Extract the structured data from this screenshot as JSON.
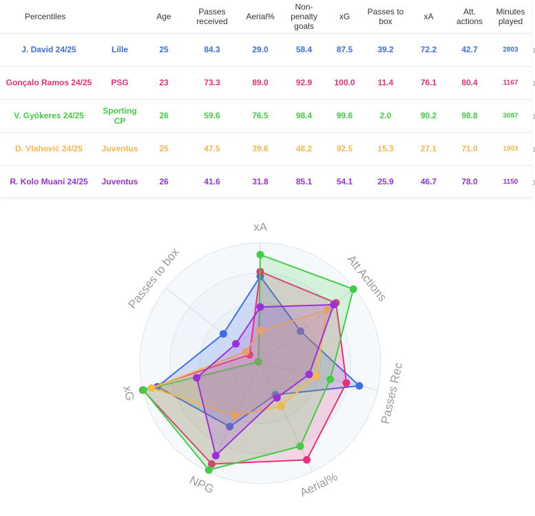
{
  "table": {
    "headers": [
      "Percentiles",
      "Age",
      "Passes received",
      "Aerial%",
      "Non-penalty goals",
      "xG",
      "Passes to box",
      "xA",
      "Att. actions",
      "Minutes played"
    ],
    "remove_label": "x",
    "rows": [
      {
        "player": "J. David 24/25",
        "team": "Lille",
        "age": "25",
        "passes_received": "84.3",
        "aerial": "29.0",
        "npg": "58.4",
        "xg": "87.5",
        "passes_box": "39.2",
        "xa": "72.2",
        "att_actions": "42.7",
        "minutes": "2803",
        "color": "#3b6ee8"
      },
      {
        "player": "Gonçalo Ramos 24/25",
        "team": "PSG",
        "age": "23",
        "passes_received": "73.3",
        "aerial": "89.0",
        "npg": "92.9",
        "xg": "100.0",
        "passes_box": "11.4",
        "xa": "76.1",
        "att_actions": "80.4",
        "minutes": "1167",
        "color": "#e8307a"
      },
      {
        "player": "V. Gyökeres 24/25",
        "team": "Sporting CP",
        "age": "26",
        "passes_received": "59.6",
        "aerial": "76.5",
        "npg": "98.4",
        "xg": "99.6",
        "passes_box": "2.0",
        "xa": "90.2",
        "att_actions": "98.8",
        "minutes": "3087",
        "color": "#44cc44"
      },
      {
        "player": "D. Vlahović 24/25",
        "team": "Juventus",
        "age": "25",
        "passes_received": "47.5",
        "aerial": "39.6",
        "npg": "48.2",
        "xg": "92.5",
        "passes_box": "15.3",
        "xa": "27.1",
        "att_actions": "71.0",
        "minutes": "1903",
        "color": "#f7b84b"
      },
      {
        "player": "R. Kolo Muani 24/25",
        "team": "Juventus",
        "age": "26",
        "passes_received": "41.6",
        "aerial": "31.8",
        "npg": "85.1",
        "xg": "54.1",
        "passes_box": "25.9",
        "xa": "46.7",
        "att_actions": "78.0",
        "minutes": "1150",
        "color": "#9b30d9"
      }
    ]
  },
  "chart_data": {
    "type": "radar",
    "axes": [
      "xA",
      "Att Actions",
      "Passes Rec",
      "Aerial%",
      "NPG",
      "xG",
      "Passes to box"
    ],
    "range": [
      0,
      100
    ],
    "series": [
      {
        "name": "J. David 24/25",
        "color": "#3b6ee8",
        "values": [
          72.2,
          42.7,
          84.3,
          29.0,
          58.4,
          87.5,
          39.2
        ]
      },
      {
        "name": "Gonçalo Ramos 24/25",
        "color": "#e8307a",
        "values": [
          76.1,
          80.4,
          73.3,
          89.0,
          92.9,
          100.0,
          11.4
        ]
      },
      {
        "name": "V. Gyökeres 24/25",
        "color": "#44cc44",
        "values": [
          90.2,
          98.8,
          59.6,
          76.5,
          98.4,
          99.6,
          2.0
        ]
      },
      {
        "name": "D. Vlahović 24/25",
        "color": "#f7b84b",
        "values": [
          27.1,
          71.0,
          47.5,
          39.6,
          48.2,
          92.5,
          15.3
        ]
      },
      {
        "name": "R. Kolo Muani 24/25",
        "color": "#9b30d9",
        "values": [
          46.7,
          78.0,
          41.6,
          31.8,
          85.1,
          54.1,
          25.9
        ]
      }
    ]
  }
}
